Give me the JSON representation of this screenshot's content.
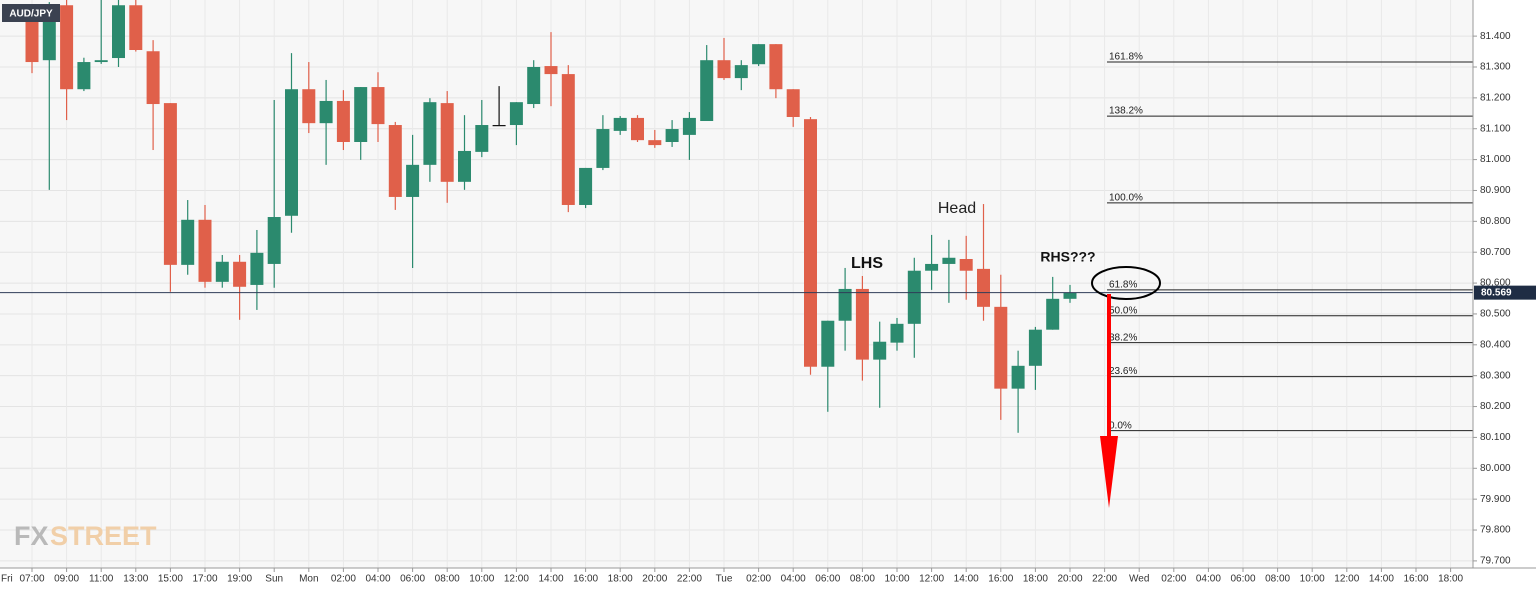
{
  "chart_data": {
    "type": "candlestick",
    "symbol": "AUD/JPY",
    "watermark": [
      "FX",
      "STREET"
    ],
    "categories": [
      "Fri",
      null,
      "07:00",
      null,
      "09:00",
      null,
      "11:00",
      null,
      "13:00",
      null,
      "15:00",
      null,
      "17:00",
      null,
      "19:00",
      null,
      "Sun",
      null,
      "Mon",
      null,
      "02:00",
      null,
      "04:00",
      null,
      "06:00",
      null,
      "08:00",
      null,
      "10:00",
      null,
      "12:00",
      null,
      "14:00",
      null,
      "16:00",
      null,
      "18:00",
      null,
      "20:00",
      null,
      "22:00",
      null,
      "Tue",
      null,
      "02:00",
      null,
      "04:00",
      null,
      "06:00",
      null,
      "08:00",
      null,
      "10:00",
      null,
      "12:00",
      null,
      "14:00",
      null,
      "16:00",
      null,
      "18:00",
      null,
      "20:00",
      null,
      "22:00",
      null,
      "Wed",
      null,
      "02:00",
      null,
      "04:00",
      null,
      "06:00",
      null,
      "08:00",
      null,
      "10:00",
      null,
      "12:00",
      null,
      "14:00",
      null,
      "16:00",
      null,
      "18:00",
      null
    ],
    "open": [
      null,
      null,
      81.468,
      81.322,
      81.5,
      81.228,
      81.316,
      81.329,
      81.5,
      81.351,
      81.183,
      80.659,
      80.805,
      80.604,
      80.669,
      80.594,
      80.662,
      80.818,
      81.228,
      81.118,
      81.19,
      81.057,
      81.235,
      81.112,
      80.879,
      80.983,
      81.183,
      80.928,
      81.025,
      81.112,
      81.112,
      81.18,
      81.303,
      81.277,
      80.853,
      80.973,
      81.093,
      81.135,
      81.063,
      81.057,
      81.08,
      81.125,
      81.322,
      81.264,
      81.309,
      81.374,
      81.228,
      81.131,
      80.329,
      80.478,
      80.581,
      80.352,
      80.407,
      80.468,
      80.64,
      80.662,
      80.678,
      80.646,
      80.523,
      80.258,
      80.332,
      80.449,
      80.549,
      null,
      null,
      null,
      null,
      null,
      null,
      null,
      null,
      null,
      null,
      null,
      null,
      null,
      null,
      null,
      null,
      null,
      null,
      null,
      null,
      null,
      null,
      null
    ],
    "high": [
      null,
      null,
      81.49,
      81.51,
      81.53,
      81.33,
      81.52,
      81.52,
      81.52,
      81.387,
      81.183,
      80.869,
      80.853,
      80.691,
      80.691,
      80.772,
      81.193,
      81.345,
      81.316,
      81.258,
      81.225,
      81.235,
      81.283,
      81.122,
      81.08,
      81.199,
      81.222,
      81.144,
      81.193,
      81.238,
      81.186,
      81.322,
      81.413,
      81.306,
      80.973,
      81.144,
      81.141,
      81.144,
      81.096,
      81.128,
      81.154,
      81.371,
      81.394,
      81.322,
      81.374,
      81.374,
      81.228,
      81.138,
      80.478,
      80.649,
      80.623,
      80.475,
      80.487,
      80.682,
      80.756,
      80.74,
      80.753,
      80.856,
      80.627,
      80.381,
      80.458,
      80.62,
      80.594,
      null,
      null,
      null,
      null,
      null,
      null,
      null,
      null,
      null,
      null,
      null,
      null,
      null,
      null,
      null,
      null,
      null,
      null,
      null,
      null,
      null,
      null,
      null
    ],
    "low": [
      null,
      null,
      81.28,
      80.902,
      81.128,
      81.222,
      81.31,
      81.3,
      81.35,
      81.031,
      80.572,
      80.627,
      80.585,
      80.585,
      80.481,
      80.513,
      80.585,
      80.763,
      81.086,
      80.983,
      81.031,
      80.999,
      81.057,
      80.837,
      80.649,
      80.928,
      80.86,
      80.902,
      81.008,
      81.112,
      81.047,
      81.167,
      81.173,
      80.83,
      80.843,
      80.966,
      81.08,
      81.057,
      81.038,
      81.041,
      80.999,
      81.125,
      81.258,
      81.225,
      81.303,
      81.199,
      81.106,
      80.303,
      80.183,
      80.381,
      80.284,
      80.196,
      80.381,
      80.358,
      80.578,
      80.536,
      80.546,
      80.478,
      80.157,
      80.115,
      80.254,
      80.449,
      80.536,
      null,
      null,
      null,
      null,
      null,
      null,
      null,
      null,
      null,
      null,
      null,
      null,
      null,
      null,
      null,
      null,
      null,
      null,
      null,
      null,
      null,
      null,
      null
    ],
    "close": [
      null,
      null,
      81.316,
      81.49,
      81.228,
      81.316,
      81.322,
      81.5,
      81.355,
      81.18,
      80.659,
      80.805,
      80.604,
      80.669,
      80.588,
      80.698,
      80.814,
      81.228,
      81.118,
      81.19,
      81.057,
      81.235,
      81.115,
      80.879,
      80.983,
      81.186,
      80.928,
      81.028,
      81.112,
      81.112,
      81.186,
      81.3,
      81.277,
      80.853,
      80.973,
      81.099,
      81.135,
      81.063,
      81.047,
      81.099,
      81.135,
      81.322,
      81.264,
      81.306,
      81.374,
      81.228,
      81.138,
      80.329,
      80.478,
      80.581,
      80.352,
      80.41,
      80.468,
      80.64,
      80.662,
      80.682,
      80.64,
      80.523,
      80.258,
      80.332,
      80.449,
      80.549,
      80.569,
      null,
      null,
      null,
      null,
      null,
      null,
      null,
      null,
      null,
      null,
      null,
      null,
      null,
      null,
      null,
      null,
      null,
      null,
      null,
      null,
      null,
      null,
      null
    ],
    "up_color": "#2b8a6e",
    "down_color": "#e0604a",
    "doji_color": "#111111",
    "ylim": [
      79.677,
      81.517
    ],
    "yticks": [
      {
        "value": 81.4,
        "label": "81.400"
      },
      {
        "value": 81.3,
        "label": "81.300"
      },
      {
        "value": 81.2,
        "label": "81.200"
      },
      {
        "value": 81.1,
        "label": "81.100"
      },
      {
        "value": 81.0,
        "label": "81.000"
      },
      {
        "value": 80.9,
        "label": "80.900"
      },
      {
        "value": 80.8,
        "label": "80.800"
      },
      {
        "value": 80.7,
        "label": "80.700"
      },
      {
        "value": 80.6,
        "label": "80.600"
      },
      {
        "value": 80.5,
        "label": "80.500"
      },
      {
        "value": 80.4,
        "label": "80.400"
      },
      {
        "value": 80.3,
        "label": "80.300"
      },
      {
        "value": 80.2,
        "label": "80.200"
      },
      {
        "value": 80.1,
        "label": "80.100"
      },
      {
        "value": 80.0,
        "label": "80.000"
      },
      {
        "value": 79.9,
        "label": "79.900"
      },
      {
        "value": 79.8,
        "label": "79.800"
      },
      {
        "value": 79.7,
        "label": "79.700"
      }
    ],
    "grid": true,
    "price_line": {
      "value": 80.569,
      "label": "80.569"
    },
    "fib_levels": [
      {
        "value": 81.316,
        "label": "161.8%"
      },
      {
        "value": 81.141,
        "label": "138.2%"
      },
      {
        "value": 80.86,
        "label": "100.0%"
      },
      {
        "value": 80.578,
        "label": "61.8%"
      },
      {
        "value": 80.494,
        "label": "50.0%"
      },
      {
        "value": 80.407,
        "label": "38.2%"
      },
      {
        "value": 80.297,
        "label": "23.6%"
      },
      {
        "value": 80.122,
        "label": "0.0%"
      }
    ],
    "annotations": [
      "LHS",
      "Head",
      "RHS???"
    ]
  }
}
